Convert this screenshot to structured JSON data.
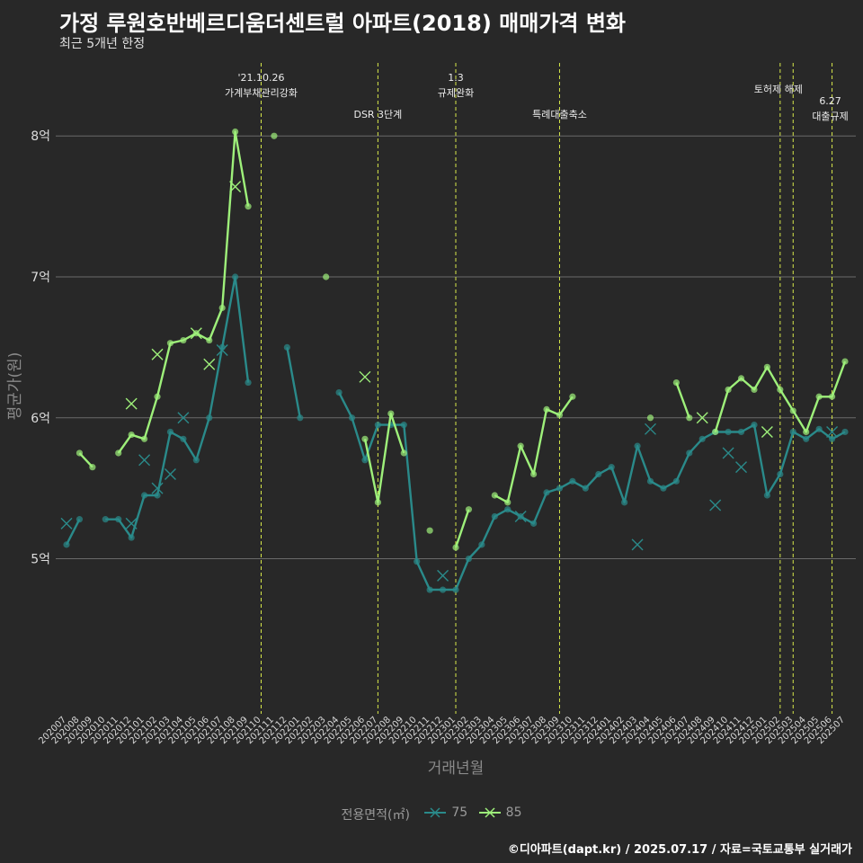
{
  "title": "가정 루원호반베르디움더센트럴 아파트(2018) 매매가격 변화",
  "subtitle": "최근 5개년 한정",
  "caption": "©디아파트(dapt.kr) / 2025.07.17 / 자료=국토교통부 실거래가",
  "chart_data": {
    "type": "line",
    "xlabel": "거래년월",
    "ylabel": "평균가(원)",
    "ylim": [
      3.9,
      8.55
    ],
    "grid": true,
    "yticks": [
      {
        "value": 5,
        "label": "5억"
      },
      {
        "value": 6,
        "label": "6억"
      },
      {
        "value": 7,
        "label": "7억"
      },
      {
        "value": 8,
        "label": "8억"
      }
    ],
    "categories": [
      "202007",
      "202008",
      "202009",
      "202010",
      "202011",
      "202012",
      "202101",
      "202102",
      "202103",
      "202104",
      "202105",
      "202106",
      "202107",
      "202108",
      "202109",
      "202110",
      "202111",
      "202112",
      "202201",
      "202202",
      "202203",
      "202204",
      "202205",
      "202206",
      "202207",
      "202208",
      "202209",
      "202210",
      "202211",
      "202212",
      "202301",
      "202302",
      "202303",
      "202304",
      "202305",
      "202306",
      "202307",
      "202308",
      "202309",
      "202310",
      "202311",
      "202312",
      "202401",
      "202402",
      "202403",
      "202404",
      "202405",
      "202406",
      "202407",
      "202408",
      "202409",
      "202410",
      "202411",
      "202412",
      "202501",
      "202502",
      "202503",
      "202504",
      "202505",
      "202506",
      "202507"
    ],
    "legend": {
      "title": "전용면적(㎡)",
      "position": "bottom"
    },
    "series": [
      {
        "name": "75",
        "color": "#2a8a8a",
        "values": [
          5.1,
          5.28,
          null,
          5.28,
          5.28,
          5.15,
          5.45,
          5.45,
          5.9,
          5.85,
          5.7,
          6.0,
          6.5,
          7.0,
          6.25,
          null,
          null,
          6.5,
          6.0,
          null,
          null,
          6.18,
          6.0,
          5.7,
          5.95,
          5.95,
          5.95,
          4.98,
          4.78,
          4.78,
          4.78,
          5.0,
          5.1,
          5.3,
          5.35,
          5.3,
          5.25,
          5.47,
          5.5,
          5.55,
          5.5,
          5.6,
          5.65,
          5.4,
          5.8,
          5.55,
          5.5,
          5.55,
          5.75,
          5.85,
          5.9,
          5.9,
          5.9,
          5.95,
          5.45,
          5.6,
          5.9,
          5.85,
          5.92,
          5.85,
          5.9
        ],
        "highlights": [
          [
            0,
            5.25
          ],
          [
            5,
            5.25
          ],
          [
            6,
            5.7
          ],
          [
            7,
            5.5
          ],
          [
            8,
            5.6
          ],
          [
            9,
            6.0
          ],
          [
            12,
            6.48
          ],
          [
            29,
            4.88
          ],
          [
            35,
            5.3
          ],
          [
            44,
            5.1
          ],
          [
            45,
            5.92
          ],
          [
            50,
            5.38
          ],
          [
            51,
            5.75
          ],
          [
            52,
            5.65
          ],
          [
            59,
            5.9
          ]
        ]
      },
      {
        "name": "85",
        "color": "#9ef07a",
        "values": [
          null,
          5.75,
          5.65,
          null,
          5.75,
          5.88,
          5.85,
          6.15,
          6.53,
          6.55,
          6.6,
          6.55,
          6.78,
          8.03,
          7.5,
          null,
          8.0,
          null,
          null,
          null,
          7.0,
          null,
          null,
          5.85,
          5.4,
          6.03,
          5.75,
          null,
          5.2,
          null,
          5.08,
          5.35,
          null,
          5.45,
          5.4,
          5.8,
          5.6,
          6.06,
          6.02,
          6.15,
          null,
          null,
          null,
          null,
          null,
          6.0,
          null,
          6.25,
          6.0,
          null,
          5.9,
          6.2,
          6.28,
          6.2,
          6.36,
          6.2,
          6.05,
          5.9,
          6.15,
          6.15,
          6.4
        ],
        "highlights": [
          [
            5,
            6.1
          ],
          [
            7,
            6.45
          ],
          [
            10,
            6.6
          ],
          [
            11,
            6.38
          ],
          [
            13,
            7.64
          ],
          [
            23,
            6.29
          ],
          [
            49,
            6.0
          ],
          [
            54,
            5.9
          ]
        ]
      }
    ],
    "events": [
      {
        "label": "'21.10.26 가계부채관리강화",
        "index": 15
      },
      {
        "label": "DSR 3단계",
        "index": 24
      },
      {
        "label": "1.3 규제완화",
        "index": 30
      },
      {
        "label": "특례대출축소",
        "index": 38
      },
      {
        "label": "토허제 해제",
        "index": 55
      },
      {
        "label": "토허제 해제",
        "index": 56
      },
      {
        "label": "6.27 대출규제",
        "index": 59
      }
    ]
  }
}
